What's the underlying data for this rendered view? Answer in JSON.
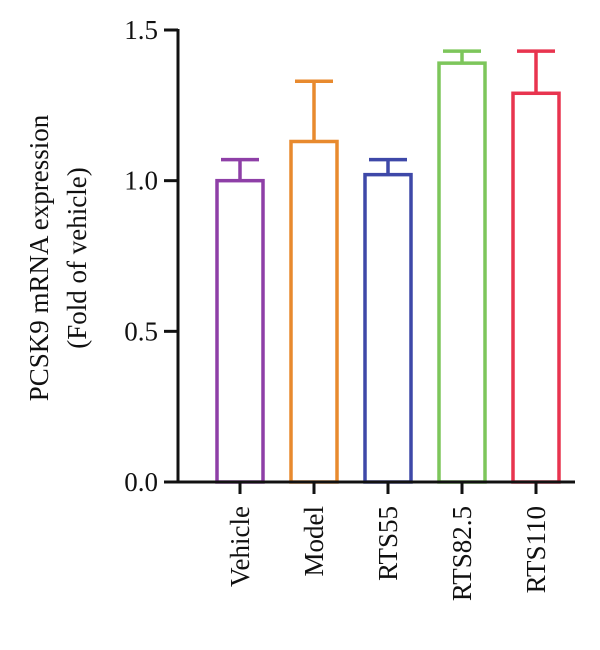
{
  "chart_data": {
    "type": "bar",
    "title": "",
    "ylabel_line1": "PCSK9 mRNA expression",
    "ylabel_line2": "(Fold of vehicle)",
    "xlabel": "",
    "ylim": [
      0,
      1.5
    ],
    "yticks": [
      0.0,
      0.5,
      1.0,
      1.5
    ],
    "ytick_labels": [
      "0.0",
      "0.5",
      "1.0",
      "1.5"
    ],
    "categories": [
      "Vehicle",
      "Model",
      "RTS55",
      "RTS82.5",
      "RTS110"
    ],
    "values": [
      1.0,
      1.13,
      1.02,
      1.39,
      1.29
    ],
    "error_upper": [
      0.07,
      0.2,
      0.05,
      0.04,
      0.14
    ],
    "colors": [
      "#8E3FA7",
      "#E88A2E",
      "#3E48A8",
      "#7DC65B",
      "#E8344F"
    ],
    "grid": false,
    "legend": false
  }
}
